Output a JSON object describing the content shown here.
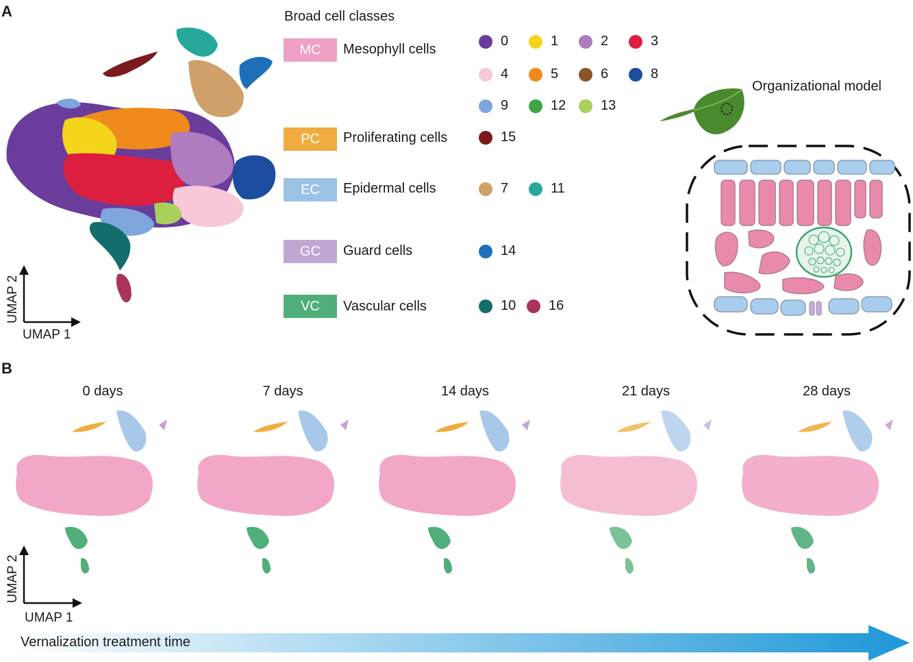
{
  "panel_a": {
    "letter": "A",
    "legend_title": "Broad cell classes",
    "axis": {
      "x": "UMAP 1",
      "y": "UMAP 2"
    },
    "organizational_model_title": "Organizational model",
    "classes": [
      {
        "abbr": "MC",
        "name": "Mesophyll  cells",
        "color": "#ef9fc3"
      },
      {
        "abbr": "PC",
        "name": "Proliferating cells",
        "color": "#f0ac3f"
      },
      {
        "abbr": "EC",
        "name": "Epidermal cells",
        "color": "#9cc2e6"
      },
      {
        "abbr": "GC",
        "name": "Guard cells",
        "color": "#c0a7d3"
      },
      {
        "abbr": "VC",
        "name": "Vascular cells",
        "color": "#4fae7a"
      }
    ],
    "clusters": [
      {
        "id": "0",
        "color": "#6a3c9c"
      },
      {
        "id": "1",
        "color": "#f4d51c"
      },
      {
        "id": "2",
        "color": "#b07cc0"
      },
      {
        "id": "3",
        "color": "#dc1f3e"
      },
      {
        "id": "4",
        "color": "#f7c8d8"
      },
      {
        "id": "5",
        "color": "#f08a1c"
      },
      {
        "id": "6",
        "color": "#8b5326"
      },
      {
        "id": "8",
        "color": "#1c4d9e"
      },
      {
        "id": "9",
        "color": "#7ea6dc"
      },
      {
        "id": "12",
        "color": "#3da642"
      },
      {
        "id": "13",
        "color": "#a8d05a"
      },
      {
        "id": "15",
        "color": "#7a1a1f"
      },
      {
        "id": "7",
        "color": "#cfa06a"
      },
      {
        "id": "11",
        "color": "#26a99a"
      },
      {
        "id": "14",
        "color": "#1d6fb8"
      },
      {
        "id": "10",
        "color": "#136d6d"
      },
      {
        "id": "16",
        "color": "#a8345a"
      }
    ]
  },
  "panel_b": {
    "letter": "B",
    "axis": {
      "x": "UMAP 1",
      "y": "UMAP 2"
    },
    "timepoints": [
      "0 days",
      "7 days",
      "14 days",
      "21 days",
      "28 days"
    ],
    "arrow_label": "Vernalization treatment time",
    "arrow_color": "#1d97d8"
  }
}
